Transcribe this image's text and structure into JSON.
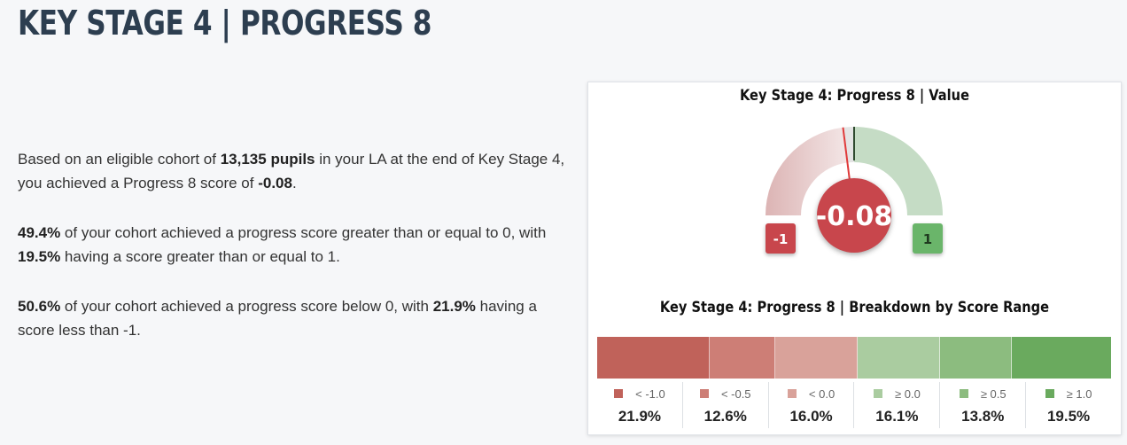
{
  "page": {
    "title": "KEY STAGE 4 | PROGRESS 8"
  },
  "summary": {
    "p1": {
      "a": "Based on an eligible cohort of ",
      "b": "13,135 pupils",
      "c": " in your LA at the end of Key Stage 4, you achieved a Progress 8 score of ",
      "d": "-0.08",
      "e": "."
    },
    "p2": {
      "a": "49.4%",
      "b": " of your cohort achieved a progress score greater than or equal to 0, with ",
      "c": "19.5%",
      "d": " having a score greater than or equal to 1."
    },
    "p3": {
      "a": "50.6%",
      "b": " of your cohort achieved a progress score below 0, with ",
      "c": "21.9%",
      "d": " having a score less than -1."
    }
  },
  "gauge_chart": {
    "title": "Key Stage 4: Progress 8 | Value",
    "value": -0.08,
    "value_label": "-0.08",
    "min": -1,
    "max": 1,
    "min_label": "-1",
    "max_label": "1",
    "colors": {
      "negative_arc": "#dcb4b4",
      "positive_arc": "#c5dcc5",
      "needle": "#e03a3a",
      "center": "#c8464c",
      "min_badge": "#c8464c",
      "max_badge": "#6ab56a",
      "marker": "#2e4a2e"
    }
  },
  "chart_data": {
    "type": "bar",
    "title": "Key Stage 4: Progress 8 | Breakdown by Score Range",
    "categories": [
      "< -1.0",
      "< -0.5",
      "< 0.0",
      "≥ 0.0",
      "≥ 0.5",
      "≥ 1.0"
    ],
    "values": [
      21.9,
      12.6,
      16.0,
      16.1,
      13.8,
      19.5
    ],
    "value_labels": [
      "21.9%",
      "12.6%",
      "16.0%",
      "16.1%",
      "13.8%",
      "19.5%"
    ],
    "colors": [
      "#c0625a",
      "#cd7e76",
      "#d9a29a",
      "#aacca0",
      "#8cbc7f",
      "#6aaa5e"
    ]
  }
}
